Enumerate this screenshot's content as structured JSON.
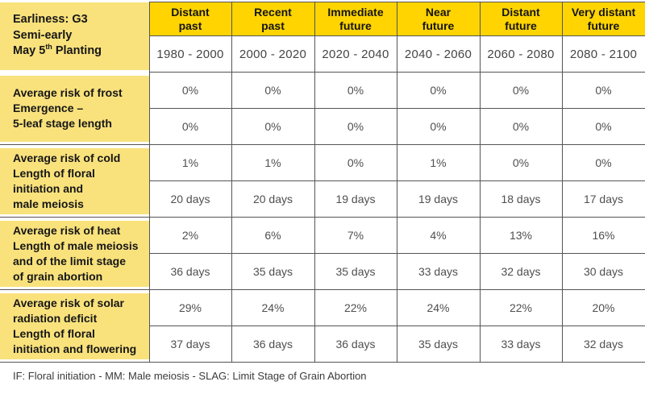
{
  "chart_data": {
    "type": "table",
    "corner": {
      "line1": "Earliness: G3",
      "line2": "Semi-early",
      "line3_prefix": "May 5",
      "line3_superscript": "th",
      "line3_suffix": " Planting"
    },
    "columns": [
      {
        "header": "Distant\npast",
        "period": "1980 - 2000"
      },
      {
        "header": "Recent\npast",
        "period": "2000 - 2020"
      },
      {
        "header": "Immediate\nfuture",
        "period": "2020 - 2040"
      },
      {
        "header": "Near\nfuture",
        "period": "2040 - 2060"
      },
      {
        "header": "Distant\nfuture",
        "period": "2060 - 2080"
      },
      {
        "header": "Very distant\nfuture",
        "period": "2080 - 2100"
      }
    ],
    "groups": [
      {
        "label": "Average risk of frost\nEmergence –\n5-leaf stage length",
        "rows": [
          [
            "0%",
            "0%",
            "0%",
            "0%",
            "0%",
            "0%"
          ],
          [
            "0%",
            "0%",
            "0%",
            "0%",
            "0%",
            "0%"
          ]
        ]
      },
      {
        "label": "Average risk of cold\nLength of floral\ninitiation and\nmale meiosis",
        "rows": [
          [
            "1%",
            "1%",
            "0%",
            "1%",
            "0%",
            "0%"
          ],
          [
            "20 days",
            "20 days",
            "19 days",
            "19 days",
            "18 days",
            "17 days"
          ]
        ]
      },
      {
        "label": "Average risk of heat\nLength of male meiosis\nand of the limit stage\nof grain abortion",
        "rows": [
          [
            "2%",
            "6%",
            "7%",
            "4%",
            "13%",
            "16%"
          ],
          [
            "36 days",
            "35 days",
            "35 days",
            "33 days",
            "32 days",
            "30 days"
          ]
        ]
      },
      {
        "label": "Average risk of solar\nradiation deficit\nLength of floral\ninitiation and flowering",
        "rows": [
          [
            "29%",
            "24%",
            "22%",
            "24%",
            "22%",
            "20%"
          ],
          [
            "37 days",
            "36 days",
            "36 days",
            "35 days",
            "33 days",
            "32 days"
          ]
        ]
      }
    ],
    "footnote": "IF: Floral initiation - MM: Male meiosis - SLAG: Limit Stage of Grain Abortion"
  },
  "colors": {
    "header_yellow": "#FFD400",
    "label_yellow": "#F9E27C",
    "border_gray": "#555555",
    "value_text": "#4f4f4f",
    "label_text": "#161616"
  }
}
